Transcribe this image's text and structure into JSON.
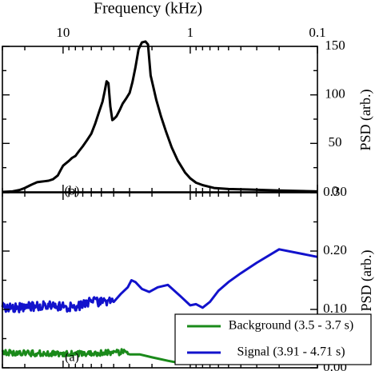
{
  "chart_data": [
    {
      "type": "line",
      "panel_label": "(b)",
      "title": "Frequency (kHz)",
      "ylabel": "PSD (arb.)",
      "x_scale": "log",
      "xlim": [
        0.1,
        30
      ],
      "ylim": [
        0,
        150
      ],
      "x_ticks": [
        {
          "value": 0.1,
          "label": "0.1"
        },
        {
          "value": 1,
          "label": "1"
        },
        {
          "value": 10,
          "label": "10"
        }
      ],
      "y_ticks": [
        {
          "value": 0,
          "label": "0"
        },
        {
          "value": 50,
          "label": "50"
        },
        {
          "value": 100,
          "label": "100"
        },
        {
          "value": 150,
          "label": "150"
        }
      ],
      "series": [
        {
          "color": "#000000",
          "points": [
            [
              0.1,
              0.5
            ],
            [
              0.2,
              1.5
            ],
            [
              0.35,
              2.5
            ],
            [
              0.5,
              3
            ],
            [
              0.65,
              4
            ],
            [
              0.8,
              7
            ],
            [
              0.9,
              9.5
            ],
            [
              1.0,
              14
            ],
            [
              1.1,
              20
            ],
            [
              1.25,
              32
            ],
            [
              1.4,
              46
            ],
            [
              1.55,
              62
            ],
            [
              1.7,
              78
            ],
            [
              1.85,
              95
            ],
            [
              1.95,
              108
            ],
            [
              2.05,
              120
            ],
            [
              2.15,
              152
            ],
            [
              2.25,
              155
            ],
            [
              2.4,
              154
            ],
            [
              2.55,
              147
            ],
            [
              2.7,
              128
            ],
            [
              2.85,
              113
            ],
            [
              3.0,
              102
            ],
            [
              3.2,
              96
            ],
            [
              3.4,
              91
            ],
            [
              3.6,
              84
            ],
            [
              3.8,
              78
            ],
            [
              4.0,
              75
            ],
            [
              4.1,
              74
            ],
            [
              4.25,
              88
            ],
            [
              4.4,
              112
            ],
            [
              4.55,
              114
            ],
            [
              4.7,
              104
            ],
            [
              4.9,
              93
            ],
            [
              5.2,
              83
            ],
            [
              5.6,
              70
            ],
            [
              6.0,
              60
            ],
            [
              6.5,
              53
            ],
            [
              7.0,
              47
            ],
            [
              7.5,
              42
            ],
            [
              8.0,
              37
            ],
            [
              8.5,
              35
            ],
            [
              9.0,
              32
            ],
            [
              10.0,
              27
            ],
            [
              10.5,
              22
            ],
            [
              11.0,
              17
            ],
            [
              12.0,
              13
            ],
            [
              13.0,
              11.5
            ],
            [
              14.0,
              11
            ],
            [
              15.0,
              10.5
            ],
            [
              16.0,
              10
            ],
            [
              17.0,
              8.5
            ],
            [
              18.0,
              7
            ],
            [
              20.0,
              4
            ],
            [
              22.0,
              2
            ],
            [
              25.0,
              0.5
            ],
            [
              30.0,
              0
            ]
          ]
        }
      ]
    },
    {
      "type": "line",
      "panel_label": "(a)",
      "ylabel": "PSD (arb.)",
      "x_scale": "log",
      "xlim": [
        0.1,
        30
      ],
      "ylim": [
        0,
        0.3
      ],
      "y_ticks": [
        {
          "value": 0,
          "label": "0.00"
        },
        {
          "value": 0.1,
          "label": "0.10"
        },
        {
          "value": 0.2,
          "label": "0.20"
        },
        {
          "value": 0.3,
          "label": "0.30"
        }
      ],
      "legend_position": "bottom-right",
      "series": [
        {
          "name": "Background (3.5 - 3.7 s)",
          "color": "#1a8a1a",
          "noise_from_x": 3.0,
          "noise_amplitude": 0.005,
          "points": [
            [
              0.1,
              0.035
            ],
            [
              0.2,
              0.04
            ],
            [
              0.3,
              0.034
            ],
            [
              0.4,
              0.031
            ],
            [
              0.5,
              0.03
            ],
            [
              0.6,
              0.026
            ],
            [
              0.7,
              0.02
            ],
            [
              0.8,
              0.014
            ],
            [
              0.9,
              0.011
            ],
            [
              1.0,
              0.009
            ],
            [
              1.2,
              0.008
            ],
            [
              1.5,
              0.012
            ],
            [
              2.0,
              0.018
            ],
            [
              2.5,
              0.023
            ],
            [
              3.0,
              0.028
            ],
            [
              4.0,
              0.026
            ],
            [
              5.0,
              0.025
            ],
            [
              7.0,
              0.024
            ],
            [
              10.0,
              0.024
            ],
            [
              14.0,
              0.025
            ],
            [
              20.0,
              0.025
            ],
            [
              30.0,
              0.026
            ]
          ]
        },
        {
          "name": "Signal (3.91 - 4.71 s)",
          "color": "#1212cc",
          "noise_from_x": 4.0,
          "noise_amplitude": 0.008,
          "points": [
            [
              0.1,
              0.19
            ],
            [
              0.2,
              0.203
            ],
            [
              0.3,
              0.18
            ],
            [
              0.4,
              0.162
            ],
            [
              0.5,
              0.147
            ],
            [
              0.6,
              0.132
            ],
            [
              0.7,
              0.113
            ],
            [
              0.8,
              0.103
            ],
            [
              0.9,
              0.109
            ],
            [
              1.0,
              0.107
            ],
            [
              1.2,
              0.123
            ],
            [
              1.5,
              0.142
            ],
            [
              1.8,
              0.138
            ],
            [
              2.1,
              0.13
            ],
            [
              2.4,
              0.135
            ],
            [
              2.7,
              0.147
            ],
            [
              2.9,
              0.15
            ],
            [
              3.1,
              0.138
            ],
            [
              3.5,
              0.127
            ],
            [
              4.0,
              0.118
            ],
            [
              5.0,
              0.112
            ],
            [
              6.0,
              0.115
            ],
            [
              7.0,
              0.108
            ],
            [
              8.0,
              0.105
            ],
            [
              10.0,
              0.104
            ],
            [
              13.0,
              0.107
            ],
            [
              17.0,
              0.105
            ],
            [
              22.0,
              0.103
            ],
            [
              30.0,
              0.104
            ]
          ]
        }
      ]
    }
  ],
  "annotation": "#120280"
}
